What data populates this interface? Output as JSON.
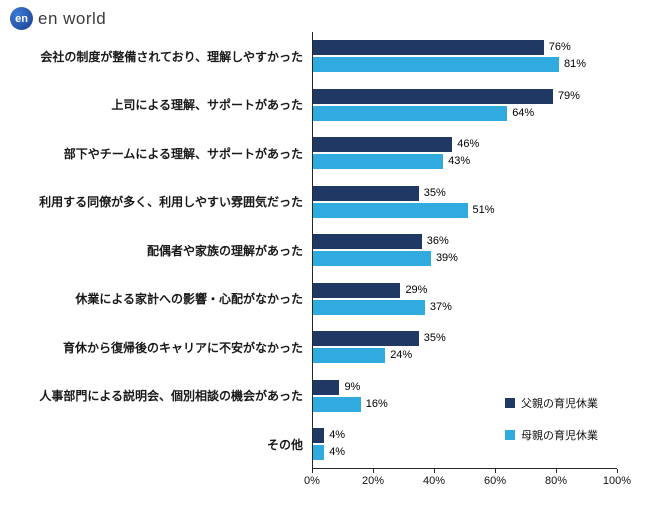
{
  "brand": {
    "logo_mark": "en",
    "logo_text": "en world"
  },
  "colors": {
    "father_series": "#1F3864",
    "mother_series": "#31AADF",
    "axis": "#262626",
    "text": "#000000"
  },
  "chart_data": {
    "type": "bar",
    "orientation": "horizontal",
    "title": "",
    "xlabel": "",
    "ylabel": "",
    "xlim": [
      0,
      100
    ],
    "x_ticks": [
      "0%",
      "20%",
      "40%",
      "60%",
      "80%",
      "100%"
    ],
    "grid": false,
    "legend_position": "right-bottom",
    "value_labels": true,
    "value_suffix": "%",
    "categories": [
      "会社の制度が整備されており、理解しやすかった",
      "上司による理解、サポートがあった",
      "部下やチームによる理解、サポートがあった",
      "利用する同僚が多く、利用しやすい雰囲気だった",
      "配偶者や家族の理解があった",
      "休業による家計への影響・心配がなかった",
      "育休から復帰後のキャリアに不安がなかった",
      "人事部門による説明会、個別相談の機会があった",
      "その他"
    ],
    "series": [
      {
        "name": "父親の育児休業",
        "color": "#1F3864",
        "values": [
          76,
          79,
          46,
          35,
          36,
          29,
          35,
          9,
          4
        ]
      },
      {
        "name": "母親の育児休業",
        "color": "#31AADF",
        "values": [
          81,
          64,
          43,
          51,
          39,
          37,
          24,
          16,
          4
        ]
      }
    ]
  }
}
